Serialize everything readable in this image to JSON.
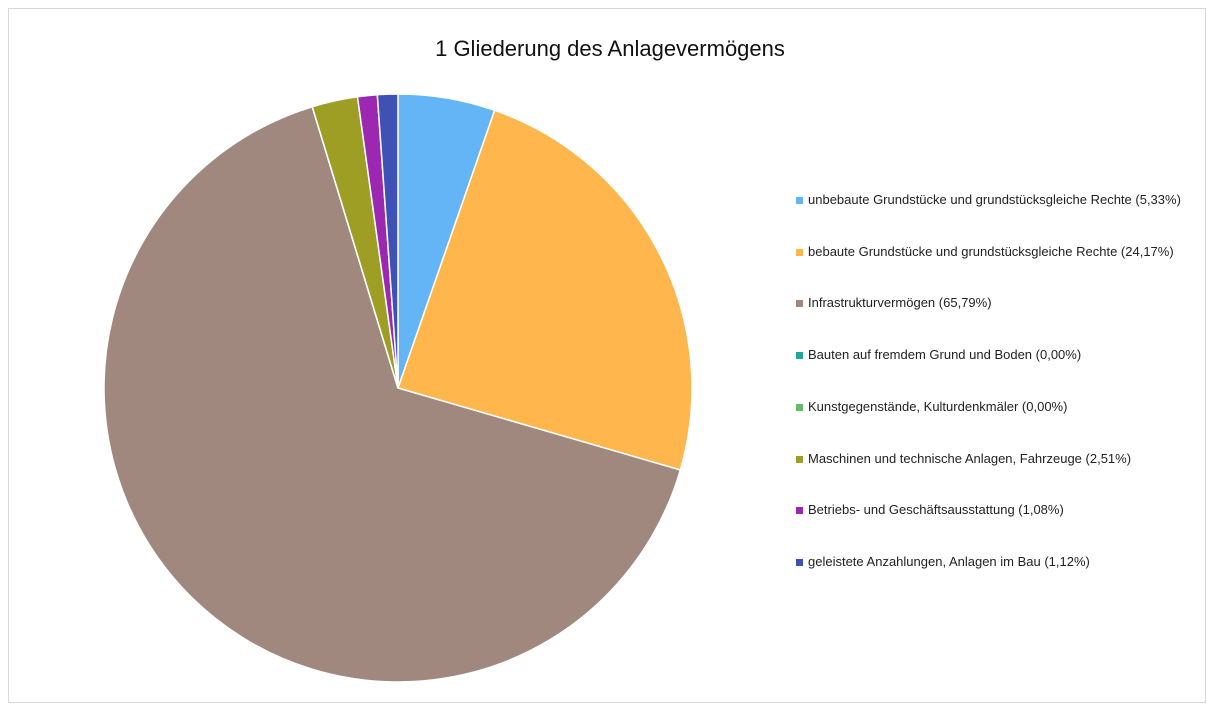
{
  "chart_data": {
    "type": "pie",
    "title": "1 Gliederung des Anlagevermögens",
    "categories": [
      "unbebaute Grundstücke und grundstücksgleiche Rechte (5,33%)",
      "bebaute Grundstücke und grundstücksgleiche Rechte (24,17%)",
      "Infrastrukturvermögen (65,79%)",
      "Bauten auf fremdem Grund und Boden (0,00%)",
      "Kunstgegenstände, Kulturdenkmäler (0,00%)",
      "Maschinen und technische Anlagen, Fahrzeuge (2,51%)",
      "Betriebs- und Geschäftsausstattung (1,08%)",
      "geleistete Anzahlungen, Anlagen im Bau (1,12%)"
    ],
    "values": [
      5.33,
      24.17,
      65.79,
      0,
      0,
      2.51,
      1.08,
      1.12
    ],
    "colors": [
      "#64b5f6",
      "#ffb74d",
      "#a1887f",
      "#26a69a",
      "#66bb6a",
      "#9e9d24",
      "#9c27b0",
      "#3f51b5"
    ],
    "legend": "right"
  }
}
